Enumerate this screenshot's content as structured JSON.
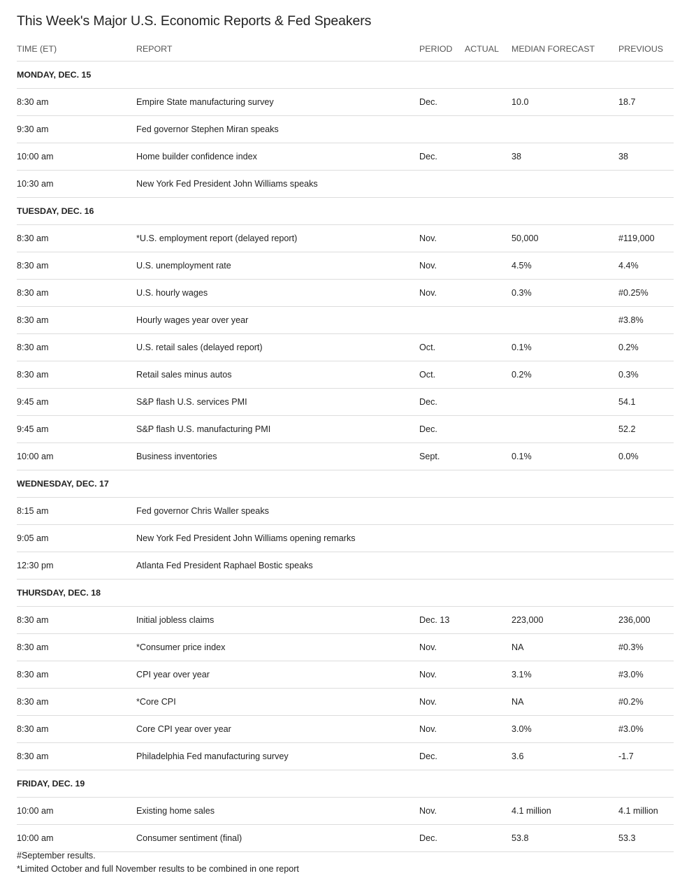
{
  "title": "This Week's Major U.S. Economic Reports & Fed Speakers",
  "columns": [
    "TIME (ET)",
    "REPORT",
    "PERIOD",
    "ACTUAL",
    "MEDIAN FORECAST",
    "PREVIOUS"
  ],
  "days": [
    {
      "label": "MONDAY, DEC. 15",
      "rows": [
        [
          "8:30 am",
          "Empire State manufacturing survey",
          "Dec.",
          "",
          "10.0",
          "18.7"
        ],
        [
          "9:30 am",
          "Fed governor Stephen Miran speaks",
          "",
          "",
          "",
          ""
        ],
        [
          "10:00 am",
          "Home builder confidence index",
          "Dec.",
          "",
          "38",
          "38"
        ],
        [
          "10:30 am",
          "New York Fed President John Williams speaks",
          "",
          "",
          "",
          ""
        ]
      ]
    },
    {
      "label": "TUESDAY, DEC. 16",
      "rows": [
        [
          "8:30 am",
          "*U.S. employment report (delayed report)",
          "Nov.",
          "",
          "50,000",
          "#119,000"
        ],
        [
          "8:30 am",
          "U.S. unemployment rate",
          "Nov.",
          "",
          "4.5%",
          "4.4%"
        ],
        [
          "8:30 am",
          "U.S. hourly wages",
          "Nov.",
          "",
          "0.3%",
          "#0.25%"
        ],
        [
          "8:30 am",
          "Hourly wages year over year",
          "",
          "",
          "",
          "#3.8%"
        ],
        [
          "8:30 am",
          "U.S. retail sales (delayed report)",
          "Oct.",
          "",
          "0.1%",
          "0.2%"
        ],
        [
          "8:30 am",
          "Retail sales minus autos",
          "Oct.",
          "",
          "0.2%",
          "0.3%"
        ],
        [
          "9:45 am",
          "S&P flash U.S. services PMI",
          "Dec.",
          "",
          "",
          "54.1"
        ],
        [
          "9:45 am",
          "S&P flash U.S. manufacturing PMI",
          "Dec.",
          "",
          "",
          "52.2"
        ],
        [
          "10:00 am",
          "Business inventories",
          "Sept.",
          "",
          "0.1%",
          "0.0%"
        ]
      ]
    },
    {
      "label": "WEDNESDAY, DEC. 17",
      "rows": [
        [
          "8:15 am",
          "Fed governor Chris Waller speaks",
          "",
          "",
          "",
          ""
        ],
        [
          "9:05 am",
          "New York Fed President John Williams opening remarks",
          "",
          "",
          "",
          ""
        ],
        [
          "12:30 pm",
          "Atlanta Fed President Raphael Bostic speaks",
          "",
          "",
          "",
          ""
        ]
      ]
    },
    {
      "label": "THURSDAY, DEC. 18",
      "rows": [
        [
          "8:30 am",
          "Initial jobless claims",
          "Dec. 13",
          "",
          "223,000",
          "236,000"
        ],
        [
          "8:30 am",
          "*Consumer price index",
          "Nov.",
          "",
          "NA",
          "#0.3%"
        ],
        [
          "8:30 am",
          "CPI year over year",
          "Nov.",
          "",
          "3.1%",
          "#3.0%"
        ],
        [
          "8:30 am",
          "*Core CPI",
          "Nov.",
          "",
          "NA",
          "#0.2%"
        ],
        [
          "8:30 am",
          "Core CPI year over year",
          "Nov.",
          "",
          "3.0%",
          "#3.0%"
        ],
        [
          "8:30 am",
          "Philadelphia Fed manufacturing survey",
          "Dec.",
          "",
          "3.6",
          "-1.7"
        ]
      ]
    },
    {
      "label": "FRIDAY, DEC. 19",
      "rows": [
        [
          "10:00 am",
          "Existing home sales",
          "Nov.",
          "",
          "4.1 million",
          "4.1 million"
        ],
        [
          "10:00 am",
          "Consumer sentiment (final)",
          "Dec.",
          "",
          "53.8",
          "53.3"
        ]
      ]
    }
  ],
  "notes": [
    "#September results.",
    "*Limited October and full November results to be combined in one report"
  ]
}
